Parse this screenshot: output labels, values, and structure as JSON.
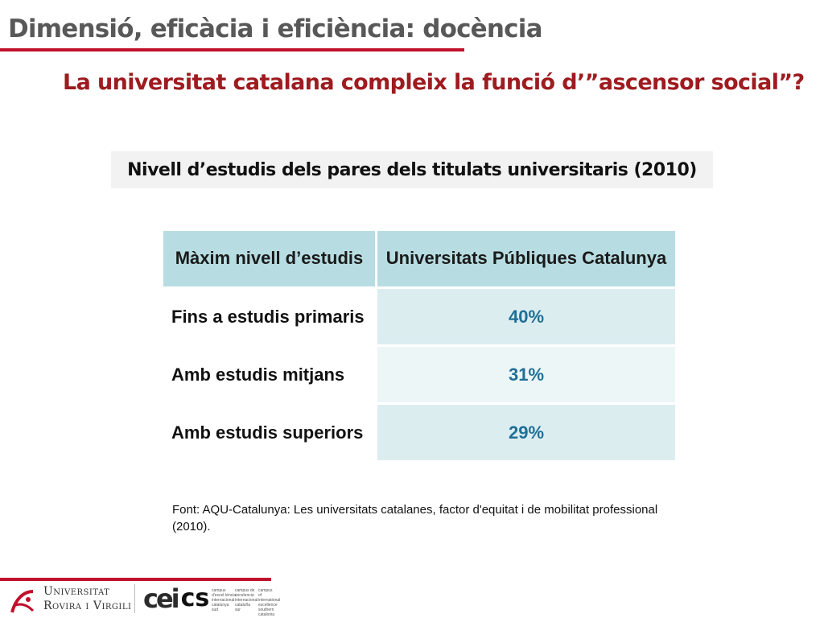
{
  "header": {
    "section_title": "Dimensió, eficàcia i eficiència: docència",
    "question": "La universitat catalana compleix la funció d’”ascensor social”?"
  },
  "table_title": "Nivell d’estudis dels pares dels titulats universitaris (2010)",
  "table": {
    "headers": [
      "Màxim nivell d’estudis",
      "Universitats Públiques Catalunya"
    ],
    "rows": [
      {
        "label": "Fins a estudis primaris",
        "value": "40%"
      },
      {
        "label": "Amb estudis mitjans",
        "value": "31%"
      },
      {
        "label": "Amb estudis superiors",
        "value": "29%"
      }
    ]
  },
  "source_note": "Font: AQU-Catalunya: Les universitats catalanes, factor d'equitat i de mobilitat professional (2010).",
  "footer": {
    "urv_line1": "Universitat",
    "urv_line2": "Rovira i Virgili",
    "cei_mark": "cei",
    "cei_cs": "cs",
    "cei_col1": "campus d'excel·lència internacional catalunya sud",
    "cei_col2": "campus de excelencia internacional cataluña sur",
    "cei_col3": "campus of international excellence southern catalonia"
  },
  "colors": {
    "accent_red": "#c0102c",
    "question_red": "#9e1b1f",
    "header_teal": "#b7dde2",
    "value_blue": "#1f6f96"
  }
}
